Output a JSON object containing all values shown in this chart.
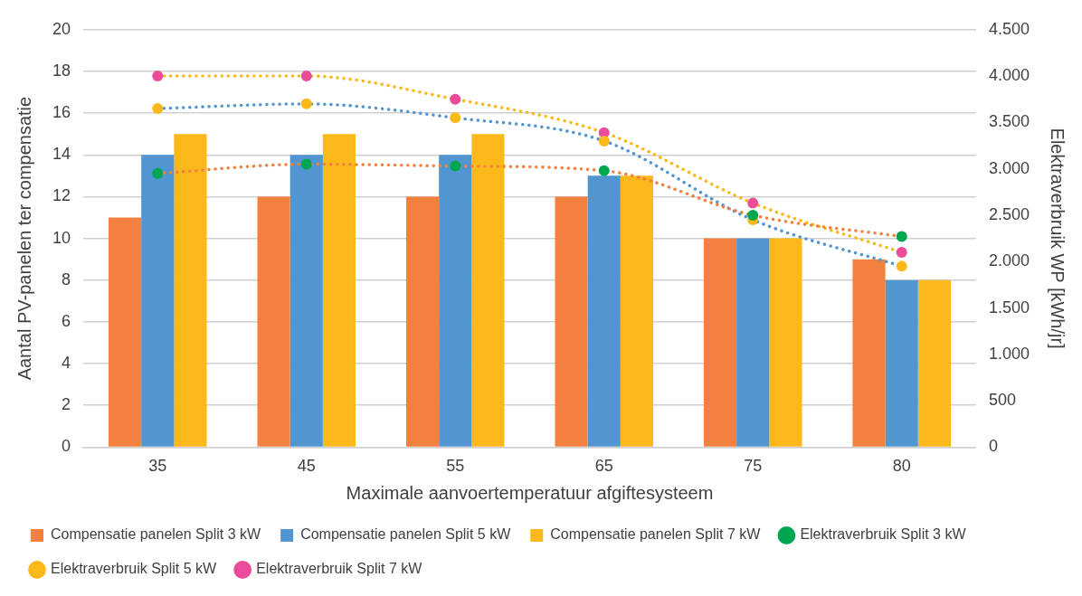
{
  "chart_data": {
    "type": "bar",
    "xlabel": "Maximale aanvoertemperatuur afgiftesysteem",
    "ylabel": "Aantal PV-panelen ter compensatie",
    "y2label": "Elektraverbruik WP [kWh/jr]",
    "categories": [
      "35",
      "45",
      "55",
      "65",
      "75",
      "80"
    ],
    "series": [
      {
        "name": "Compensatie panelen Split 3 kW",
        "color": "#f28140",
        "values": [
          11,
          12,
          12,
          12,
          10,
          9
        ]
      },
      {
        "name": "Compensatie panelen Split 5 kW",
        "color": "#5296d1",
        "values": [
          14,
          14,
          14,
          13,
          10,
          8
        ]
      },
      {
        "name": "Compensatie panelen Split 7 kW",
        "color": "#fbb81a",
        "values": [
          15,
          15,
          15,
          13,
          10,
          8
        ]
      },
      {
        "name": "Elektraverbruik Split 3 kW",
        "type": "line",
        "axis": "y2",
        "color": "#f28140",
        "colors": [
          "#00a650",
          "#00a650",
          "#00a650",
          "#00a650",
          "#00a650",
          "#00a650"
        ],
        "values": [
          2950,
          3050,
          3030,
          2980,
          2500,
          2270
        ]
      },
      {
        "name": "Elektraverbruik Split 5 kW",
        "type": "line",
        "axis": "y2",
        "color": "#5296d1",
        "colors": [
          "#fbb81a",
          "#fbb81a",
          "#fbb81a",
          "#fbb81a",
          "#fbb81a",
          "#fbb81a"
        ],
        "values": [
          3650,
          3700,
          3550,
          3300,
          2450,
          1950
        ]
      },
      {
        "name": "Elektraverbruik Split 7 kW",
        "type": "line",
        "axis": "y2",
        "color": "#fbb81a",
        "colors": [
          "#ea4c9a",
          "#ea4c9a",
          "#ea4c9a",
          "#ea4c9a",
          "#ea4c9a",
          "#ea4c9a"
        ],
        "values": [
          4000,
          4000,
          3750,
          3390,
          2630,
          2100
        ]
      }
    ],
    "ylim": [
      0,
      20
    ],
    "yticks": [
      0,
      2,
      4,
      6,
      8,
      10,
      12,
      14,
      16,
      18,
      20
    ],
    "y2lim": [
      0,
      4500
    ],
    "y2ticks": [
      0,
      500,
      {
        "value": 1000,
        "label": "1.000"
      },
      {
        "value": 1500,
        "label": "1.500"
      },
      {
        "value": 2000,
        "label": "2.000"
      },
      {
        "value": 2500,
        "label": "2.500"
      },
      {
        "value": 3000,
        "label": "3.000"
      },
      {
        "value": 3500,
        "label": "3.500"
      },
      {
        "value": 4000,
        "label": "4.000"
      },
      {
        "value": 4500,
        "label": "4.500"
      }
    ],
    "grid": "y",
    "legend": "bottom",
    "marker": "circle",
    "line_style": "dotted"
  }
}
